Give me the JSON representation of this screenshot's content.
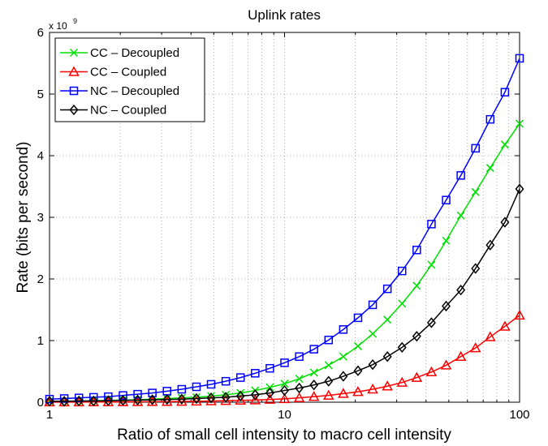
{
  "chart_data": {
    "type": "line",
    "title": "Uplink rates",
    "xlabel": "Ratio of small cell intensity to macro cell intensity",
    "ylabel": "Rate (bits per second)",
    "y_multiplier": "x 10",
    "y_exponent": "9",
    "xscale": "log",
    "grid": true,
    "legend": "upper left",
    "xlim": [
      1,
      100
    ],
    "xticks": [
      1,
      10,
      100
    ],
    "ylim": [
      0,
      6
    ],
    "yticks": [
      0,
      1,
      2,
      3,
      4,
      5,
      6
    ],
    "x": [
      1,
      1.155,
      1.334,
      1.54,
      1.778,
      2.054,
      2.371,
      2.738,
      3.162,
      3.652,
      4.217,
      4.87,
      5.623,
      6.494,
      7.499,
      8.66,
      10,
      11.548,
      13.335,
      15.399,
      17.783,
      20.535,
      23.714,
      27.384,
      31.623,
      36.517,
      42.17,
      48.697,
      56.234,
      64.938,
      74.989,
      86.596,
      100
    ],
    "series": [
      {
        "name": "CC – Decoupled",
        "color": "#00e000",
        "marker": "x",
        "values": [
          0.015,
          0.018,
          0.02,
          0.025,
          0.03,
          0.035,
          0.04,
          0.05,
          0.06,
          0.07,
          0.08,
          0.1,
          0.12,
          0.15,
          0.19,
          0.24,
          0.3,
          0.38,
          0.48,
          0.6,
          0.74,
          0.91,
          1.11,
          1.34,
          1.6,
          1.89,
          2.23,
          2.62,
          3.03,
          3.41,
          3.8,
          4.18,
          4.52
        ]
      },
      {
        "name": "CC – Coupled",
        "color": "#ff0000",
        "marker": "triangle",
        "values": [
          0.001,
          0.002,
          0.002,
          0.003,
          0.004,
          0.005,
          0.006,
          0.008,
          0.01,
          0.012,
          0.015,
          0.02,
          0.025,
          0.03,
          0.035,
          0.045,
          0.055,
          0.07,
          0.09,
          0.11,
          0.14,
          0.17,
          0.21,
          0.26,
          0.32,
          0.4,
          0.49,
          0.6,
          0.74,
          0.88,
          1.06,
          1.23,
          1.41
        ]
      },
      {
        "name": "NC – Decoupled",
        "color": "#0000ff",
        "marker": "square",
        "values": [
          0.05,
          0.06,
          0.07,
          0.08,
          0.09,
          0.11,
          0.13,
          0.15,
          0.18,
          0.21,
          0.25,
          0.29,
          0.34,
          0.4,
          0.47,
          0.55,
          0.64,
          0.74,
          0.86,
          1.01,
          1.18,
          1.37,
          1.58,
          1.84,
          2.13,
          2.47,
          2.89,
          3.28,
          3.68,
          4.12,
          4.59,
          5.03,
          5.58
        ]
      },
      {
        "name": "NC – Coupled",
        "color": "#000000",
        "marker": "diamond",
        "values": [
          0.015,
          0.015,
          0.02,
          0.02,
          0.025,
          0.03,
          0.035,
          0.04,
          0.045,
          0.05,
          0.06,
          0.07,
          0.08,
          0.1,
          0.12,
          0.15,
          0.19,
          0.23,
          0.28,
          0.34,
          0.42,
          0.51,
          0.61,
          0.74,
          0.89,
          1.07,
          1.29,
          1.56,
          1.82,
          2.17,
          2.55,
          2.92,
          3.46
        ]
      }
    ]
  }
}
